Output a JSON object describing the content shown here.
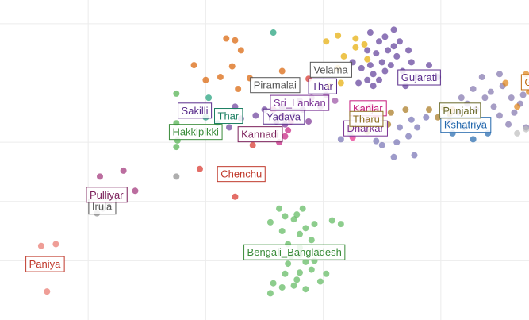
{
  "chart_data": {
    "type": "scatter",
    "title": "",
    "xlabel": "",
    "ylabel": "",
    "xlim": [
      -0.5,
      8.5
    ],
    "ylim": [
      5.4,
      0.0
    ],
    "grid": true,
    "series": [
      {
        "name": "Paniya",
        "color": "#e8756b",
        "points": [
          [
            0.3,
            0.48
          ],
          [
            0.2,
            1.25
          ],
          [
            0.45,
            1.28
          ]
        ]
      },
      {
        "name": "Irula",
        "color": "#8c8c8c",
        "points": [
          [
            1.15,
            1.8
          ],
          [
            1.25,
            1.88
          ],
          [
            1.35,
            1.98
          ],
          [
            1.3,
            2.1
          ],
          [
            2.5,
            2.42
          ]
        ]
      },
      {
        "name": "Pulliyar",
        "color": "#9e2f76",
        "points": [
          [
            1.2,
            2.42
          ],
          [
            1.6,
            2.52
          ],
          [
            1.8,
            2.18
          ]
        ]
      },
      {
        "name": "Bengali_Bangladesh",
        "color": "#5cb85c",
        "points": [
          [
            4.1,
            0.45
          ],
          [
            4.15,
            0.62
          ],
          [
            4.3,
            0.55
          ],
          [
            4.5,
            0.58
          ],
          [
            4.7,
            0.52
          ],
          [
            4.55,
            0.68
          ],
          [
            4.35,
            0.78
          ],
          [
            4.6,
            0.8
          ],
          [
            4.8,
            0.85
          ],
          [
            4.95,
            0.65
          ],
          [
            5.05,
            0.78
          ],
          [
            4.4,
            0.95
          ],
          [
            4.7,
            0.98
          ],
          [
            4.85,
            1.0
          ],
          [
            4.9,
            1.15
          ],
          [
            4.6,
            1.22
          ],
          [
            4.4,
            1.28
          ],
          [
            4.8,
            1.35
          ],
          [
            4.6,
            1.45
          ],
          [
            4.3,
            1.5
          ],
          [
            4.7,
            1.55
          ],
          [
            4.1,
            1.65
          ],
          [
            4.5,
            1.7
          ],
          [
            4.35,
            1.75
          ],
          [
            4.55,
            1.78
          ],
          [
            4.85,
            1.62
          ],
          [
            5.15,
            1.68
          ],
          [
            5.3,
            1.62
          ],
          [
            4.25,
            1.88
          ],
          [
            4.65,
            1.88
          ],
          [
            4.45,
            1.08
          ],
          [
            4.6,
            1.1
          ]
        ]
      },
      {
        "name": "Chenchu",
        "color": "#d73027",
        "points": [
          [
            3.5,
            2.08
          ],
          [
            2.9,
            2.55
          ],
          [
            3.8,
            2.95
          ],
          [
            4.75,
            4.07
          ]
        ]
      },
      {
        "name": "Hakkipikki",
        "color": "#4daf4a",
        "points": [
          [
            2.5,
            2.92
          ],
          [
            2.52,
            3.03
          ],
          [
            2.5,
            3.32
          ],
          [
            2.5,
            3.82
          ]
        ]
      },
      {
        "name": "Kannadi",
        "color": "#c51b7d",
        "points": [
          [
            4.25,
            3.0
          ],
          [
            4.35,
            3.1
          ],
          [
            4.4,
            3.2
          ],
          [
            4.45,
            3.35
          ],
          [
            4.3,
            3.45
          ],
          [
            4.15,
            3.55
          ]
        ]
      },
      {
        "name": "Sakilli",
        "color": "#6a3d9a",
        "points": [
          [
            3.4,
            3.25
          ],
          [
            3.6,
            3.4
          ],
          [
            3.85,
            3.45
          ],
          [
            4.0,
            3.55
          ],
          [
            3.5,
            3.6
          ]
        ]
      },
      {
        "name": "Thar",
        "color": "#1b9e77",
        "points": [
          [
            3.0,
            3.42
          ],
          [
            3.2,
            3.32
          ],
          [
            3.05,
            3.75
          ],
          [
            4.15,
            4.85
          ]
        ]
      },
      {
        "name": "Yadava",
        "color": "#7b3294",
        "points": [
          [
            4.2,
            3.35
          ],
          [
            4.35,
            3.3
          ],
          [
            4.5,
            3.45
          ],
          [
            4.65,
            3.55
          ],
          [
            4.3,
            3.6
          ],
          [
            4.75,
            3.35
          ]
        ]
      },
      {
        "name": "Sri_Lankan",
        "color": "#984ea3",
        "points": [
          [
            4.6,
            3.7
          ],
          [
            4.8,
            3.75
          ],
          [
            4.95,
            3.6
          ],
          [
            5.05,
            3.8
          ],
          [
            5.2,
            3.7
          ]
        ]
      },
      {
        "name": "Kanjar",
        "color": "#e7298a",
        "points": [
          [
            5.5,
            3.08
          ],
          [
            5.6,
            3.22
          ],
          [
            5.75,
            3.35
          ],
          [
            5.9,
            3.45
          ],
          [
            5.65,
            3.55
          ],
          [
            5.8,
            3.6
          ]
        ]
      },
      {
        "name": "Dharkar",
        "color": "#7570b3",
        "points": [
          [
            5.3,
            3.05
          ],
          [
            5.45,
            3.15
          ],
          [
            5.6,
            3.28
          ],
          [
            6.0,
            2.95
          ],
          [
            6.25,
            3.0
          ],
          [
            6.45,
            3.1
          ],
          [
            6.3,
            3.25
          ],
          [
            6.6,
            3.25
          ],
          [
            6.75,
            3.42
          ],
          [
            6.5,
            3.38
          ],
          [
            6.2,
            2.75
          ],
          [
            6.55,
            2.78
          ],
          [
            5.9,
            3.02
          ]
        ]
      },
      {
        "name": "Tharu",
        "color": "#a6761d",
        "points": [
          [
            5.45,
            3.22
          ],
          [
            5.75,
            3.18
          ],
          [
            6.1,
            3.3
          ],
          [
            6.15,
            3.5
          ],
          [
            6.4,
            3.55
          ],
          [
            6.8,
            3.55
          ],
          [
            7.05,
            3.58
          ],
          [
            7.15,
            3.48
          ],
          [
            6.95,
            3.42
          ]
        ]
      },
      {
        "name": "Piramalai",
        "color": "#d95f02",
        "points": [
          [
            3.0,
            4.05
          ],
          [
            3.25,
            4.1
          ],
          [
            3.55,
            3.9
          ],
          [
            3.75,
            4.08
          ],
          [
            3.45,
            4.28
          ],
          [
            2.8,
            4.3
          ],
          [
            3.6,
            4.55
          ],
          [
            3.35,
            4.75
          ],
          [
            3.5,
            4.72
          ],
          [
            4.3,
            4.2
          ]
        ]
      },
      {
        "name": "Velama",
        "color": "#e6ab02",
        "points": [
          [
            5.1,
            3.95
          ],
          [
            5.3,
            4.0
          ],
          [
            5.25,
            4.25
          ],
          [
            5.35,
            4.45
          ],
          [
            5.55,
            4.6
          ],
          [
            5.75,
            4.4
          ],
          [
            5.7,
            4.65
          ],
          [
            5.55,
            4.75
          ],
          [
            5.05,
            4.7
          ],
          [
            5.25,
            4.8
          ]
        ]
      },
      {
        "name": "Gujarati",
        "color": "#5e3c99",
        "points": [
          [
            5.6,
            4.0
          ],
          [
            5.75,
            4.05
          ],
          [
            5.85,
            4.15
          ],
          [
            5.95,
            4.05
          ],
          [
            6.05,
            4.2
          ],
          [
            5.8,
            4.3
          ],
          [
            6.0,
            4.35
          ],
          [
            6.15,
            4.3
          ],
          [
            6.25,
            4.45
          ],
          [
            5.9,
            4.5
          ],
          [
            6.1,
            4.55
          ],
          [
            5.95,
            4.7
          ],
          [
            6.2,
            4.62
          ],
          [
            6.05,
            4.78
          ],
          [
            5.75,
            4.55
          ],
          [
            6.35,
            4.2
          ],
          [
            6.5,
            4.35
          ],
          [
            6.4,
            3.95
          ],
          [
            6.6,
            4.1
          ],
          [
            6.8,
            4.3
          ],
          [
            6.95,
            4.1
          ],
          [
            6.2,
            4.9
          ],
          [
            5.65,
            4.25
          ],
          [
            5.8,
            4.85
          ],
          [
            6.3,
            4.7
          ],
          [
            6.45,
            4.55
          ],
          [
            5.5,
            4.35
          ],
          [
            5.85,
            3.95
          ]
        ]
      },
      {
        "name": "Kshatriya",
        "color": "#2166ac",
        "points": [
          [
            7.2,
            3.15
          ],
          [
            7.4,
            3.25
          ],
          [
            7.55,
            3.05
          ],
          [
            7.7,
            3.3
          ],
          [
            7.8,
            3.15
          ]
        ]
      },
      {
        "name": "Punjabi",
        "color": "#8073ac",
        "points": [
          [
            7.15,
            3.35
          ],
          [
            7.3,
            3.5
          ],
          [
            7.45,
            3.65
          ],
          [
            7.6,
            3.55
          ],
          [
            7.75,
            3.75
          ],
          [
            7.9,
            3.6
          ],
          [
            8.0,
            3.45
          ],
          [
            8.15,
            3.3
          ],
          [
            8.25,
            3.5
          ],
          [
            8.35,
            3.65
          ],
          [
            8.45,
            3.25
          ],
          [
            7.35,
            3.75
          ],
          [
            7.55,
            3.9
          ],
          [
            7.85,
            3.85
          ],
          [
            8.05,
            3.95
          ],
          [
            8.2,
            3.75
          ],
          [
            8.4,
            3.8
          ],
          [
            7.7,
            4.1
          ],
          [
            8.0,
            4.15
          ]
        ]
      },
      {
        "name": "Gujarati",
        "color": "#e08214",
        "points": [
          [
            7.2,
            3.55
          ],
          [
            8.3,
            3.6
          ],
          [
            8.5,
            3.85
          ],
          [
            8.45,
            4.15
          ],
          [
            8.1,
            4.0
          ]
        ]
      },
      {
        "name": "",
        "color": "#bdbdbd",
        "points": [
          [
            8.45,
            3.22
          ],
          [
            8.3,
            3.15
          ]
        ]
      }
    ],
    "labels": [
      {
        "text": "Paniya",
        "x": -0.06,
        "y": 0.95,
        "color": "#c0392b"
      },
      {
        "text": "Irula",
        "x": 1.01,
        "y": 1.92,
        "color": "#555555"
      },
      {
        "text": "Pulliyar",
        "x": 0.97,
        "y": 2.12,
        "color": "#7b1f5a"
      },
      {
        "text": "Bengali_Bangladesh",
        "x": 3.65,
        "y": 1.15,
        "color": "#3a8c3a"
      },
      {
        "text": "Chenchu",
        "x": 3.2,
        "y": 2.47,
        "color": "#c0392b"
      },
      {
        "text": "Hakkipikki",
        "x": 2.38,
        "y": 3.18,
        "color": "#3a8c3a"
      },
      {
        "text": "Kannadi",
        "x": 3.55,
        "y": 3.14,
        "color": "#7b1f5a"
      },
      {
        "text": "Sakilli",
        "x": 2.53,
        "y": 3.54,
        "color": "#5a2d8c"
      },
      {
        "text": "Thar",
        "x": 3.15,
        "y": 3.45,
        "color": "#1b7e61"
      },
      {
        "text": "Yadava",
        "x": 3.98,
        "y": 3.44,
        "color": "#5a2d8c"
      },
      {
        "text": "Sri_Lankan",
        "x": 4.1,
        "y": 3.67,
        "color": "#7b3294"
      },
      {
        "text": "Kanjar",
        "x": 5.45,
        "y": 3.58,
        "color": "#c51b7d"
      },
      {
        "text": "Dharkar",
        "x": 5.35,
        "y": 3.24,
        "color": "#7b3294"
      },
      {
        "text": "Tharu",
        "x": 5.45,
        "y": 3.4,
        "color": "#8c6d1f"
      },
      {
        "text": "Piramalai",
        "x": 3.76,
        "y": 3.97,
        "color": "#555555"
      },
      {
        "text": "Thar",
        "x": 4.75,
        "y": 3.95,
        "color": "#5a2d8c"
      },
      {
        "text": "Velama",
        "x": 4.78,
        "y": 4.23,
        "color": "#555555"
      },
      {
        "text": "Gujarati",
        "x": 6.27,
        "y": 4.1,
        "color": "#5a2d8c"
      },
      {
        "text": "Kshatriya",
        "x": 7.0,
        "y": 3.3,
        "color": "#2166ac"
      },
      {
        "text": "Punjabi",
        "x": 6.98,
        "y": 3.54,
        "color": "#6b6b2a"
      },
      {
        "text": "Guj",
        "x": 8.37,
        "y": 4.02,
        "color": "#c06a10"
      }
    ]
  }
}
